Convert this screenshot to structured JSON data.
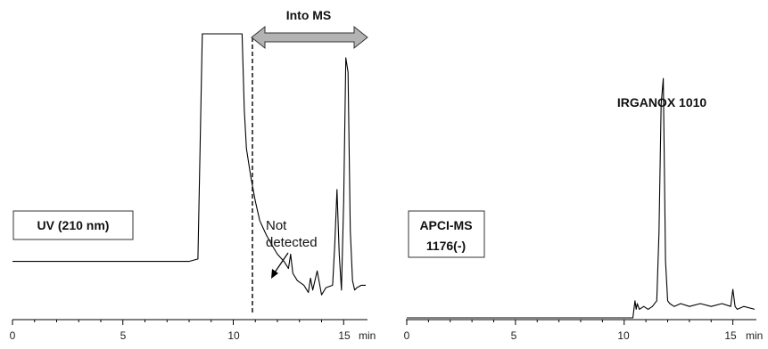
{
  "chart_data": [
    {
      "type": "line",
      "panel": "left",
      "trace_label": "UV (210 nm)",
      "x_unit": "min",
      "x_ticks": [
        "0",
        "5",
        "10",
        "15"
      ],
      "xlim": [
        0,
        16
      ],
      "annotations": {
        "arrow_label": "Into MS",
        "arrow_range": [
          10.9,
          16
        ],
        "cut_line_x": 10.9,
        "note": [
          "Not",
          "detected"
        ],
        "note_arrow_to": 10.8
      },
      "series": [
        {
          "x": [
            0,
            1,
            2,
            3,
            4,
            5,
            6,
            7,
            8,
            8.4,
            8.6,
            8.8,
            9,
            9.5,
            10,
            10.4,
            10.5,
            10.6,
            10.8,
            11.0,
            11.2,
            11.5,
            11.8,
            12.0,
            12.3,
            12.5,
            12.6,
            12.7,
            12.9,
            13.2,
            13.4,
            13.5,
            13.6,
            13.8,
            14.0,
            14.2,
            14.5,
            14.6,
            14.7,
            14.8,
            14.9,
            15.0,
            15.1,
            15.2,
            15.3,
            15.4,
            15.5,
            15.6,
            15.8,
            16.0
          ],
          "y": [
            0.05,
            0.05,
            0.05,
            0.05,
            0.05,
            0.05,
            0.05,
            0.05,
            0.05,
            0.06,
            1.0,
            1.0,
            1.0,
            1.0,
            1.0,
            1.0,
            0.68,
            0.52,
            0.4,
            0.3,
            0.22,
            0.16,
            0.11,
            0.08,
            0.05,
            0.02,
            0.08,
            0.0,
            -0.03,
            -0.05,
            -0.08,
            -0.02,
            -0.07,
            0.01,
            -0.09,
            -0.06,
            -0.05,
            0.12,
            0.35,
            0.08,
            -0.07,
            0.3,
            0.9,
            0.84,
            0.18,
            -0.03,
            -0.07,
            -0.06,
            -0.05,
            -0.05
          ]
        }
      ]
    },
    {
      "type": "line",
      "panel": "right",
      "trace_label": [
        "APCI-MS",
        "1176(-)"
      ],
      "x_unit": "min",
      "x_ticks": [
        "0",
        "5",
        "10",
        "15"
      ],
      "xlim": [
        0,
        16
      ],
      "peak_label": "IRGANOX 1010",
      "series": [
        {
          "x": [
            0,
            2,
            4,
            6,
            8,
            10,
            10.4,
            10.5,
            10.55,
            10.6,
            10.7,
            10.9,
            11.1,
            11.3,
            11.5,
            11.6,
            11.7,
            11.8,
            11.9,
            12.0,
            12.1,
            12.3,
            12.6,
            13.0,
            13.5,
            14.0,
            14.5,
            14.9,
            15.0,
            15.1,
            15.2,
            15.5,
            16.0
          ],
          "y": [
            0,
            0,
            0,
            0,
            0,
            0,
            0,
            0.06,
            0.03,
            0.05,
            0.03,
            0.04,
            0.03,
            0.04,
            0.06,
            0.3,
            0.75,
            0.84,
            0.2,
            0.06,
            0.05,
            0.04,
            0.05,
            0.04,
            0.05,
            0.04,
            0.05,
            0.04,
            0.1,
            0.04,
            0.03,
            0.04,
            0.03
          ]
        }
      ]
    }
  ]
}
